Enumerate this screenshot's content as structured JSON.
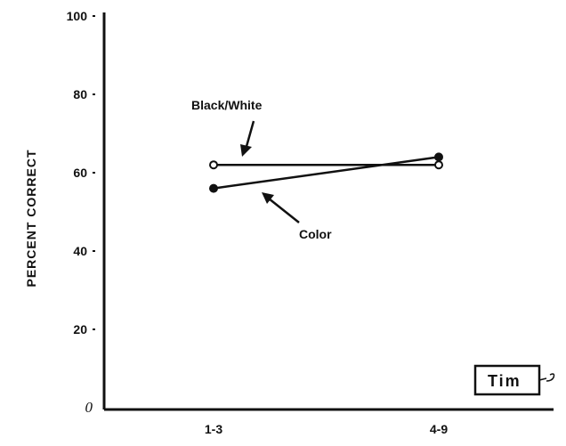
{
  "chart_data": {
    "type": "line",
    "title": "",
    "xlabel": "",
    "ylabel": "PERCENT CORRECT",
    "categories": [
      "1-3",
      "4-9"
    ],
    "ylim": [
      0,
      100
    ],
    "yticks": [
      "100",
      "80",
      "60",
      "40",
      "20",
      "0"
    ],
    "series": [
      {
        "name": "Black/White",
        "values": [
          62,
          62
        ],
        "marker": "open-circle",
        "color": "#111111"
      },
      {
        "name": "Color",
        "values": [
          56,
          64
        ],
        "marker": "filled-circle",
        "color": "#111111"
      }
    ],
    "annotations": {
      "black_white_label": "Black/White",
      "color_label": "Color",
      "boxed_label": "Tim"
    },
    "grid": false,
    "legend": "none"
  }
}
